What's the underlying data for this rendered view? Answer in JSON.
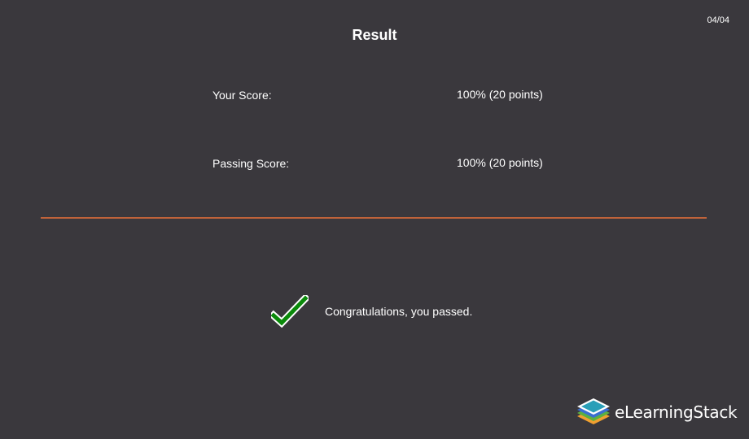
{
  "header": {
    "title": "Result",
    "page_counter": "04/04"
  },
  "scores": [
    {
      "label": "Your Score:",
      "value": "100% (20 points)"
    },
    {
      "label": "Passing Score:",
      "value": "100% (20 points)"
    }
  ],
  "result": {
    "message": "Congratulations, you passed.",
    "icon": "checkmark-icon",
    "icon_color": "#0a8a0a"
  },
  "colors": {
    "background": "#3a383d",
    "divider": "#c0633a"
  },
  "branding": {
    "logo_text": "eLearningStack"
  }
}
